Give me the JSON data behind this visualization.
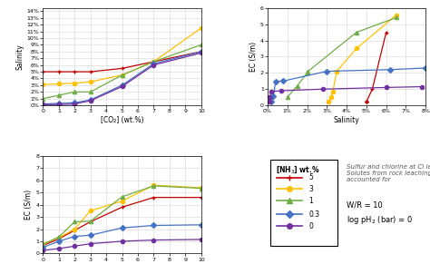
{
  "colors": {
    "red": "#c00000",
    "yellow": "#ffc000",
    "green": "#70ad47",
    "blue": "#4472c4",
    "purple": "#7030a0"
  },
  "markers": {
    "red": "+",
    "yellow": "o",
    "green": "^",
    "blue": "D",
    "purple": "o"
  },
  "nh3_labels": [
    "5",
    "3",
    "1",
    "0.3",
    "0"
  ],
  "color_order": [
    "red",
    "yellow",
    "green",
    "blue",
    "purple"
  ],
  "top_left": {
    "xlabel": "[CO₂] (wt.%)",
    "ylabel": "Salinity",
    "xlim": [
      0,
      10
    ],
    "ylim": [
      0,
      0.145
    ],
    "x": [
      0,
      1,
      2,
      3,
      5,
      7,
      10
    ],
    "series": {
      "red": [
        0.05,
        0.05,
        0.05,
        0.05,
        0.055,
        0.065,
        0.08
      ],
      "yellow": [
        0.031,
        0.032,
        0.033,
        0.035,
        0.045,
        0.065,
        0.115
      ],
      "green": [
        0.01,
        0.015,
        0.02,
        0.02,
        0.045,
        0.065,
        0.09
      ],
      "blue": [
        0.002,
        0.003,
        0.004,
        0.008,
        0.03,
        0.062,
        0.08
      ],
      "purple": [
        0.001,
        0.001,
        0.002,
        0.007,
        0.028,
        0.06,
        0.078
      ]
    }
  },
  "top_right": {
    "xlabel": "Salinity",
    "ylabel": "EC (S/m)",
    "xlim": [
      0,
      0.08
    ],
    "ylim": [
      0,
      6
    ],
    "series": {
      "red": {
        "x": [
          0.05,
          0.05,
          0.05,
          0.05,
          0.053,
          0.06
        ],
        "y": [
          0.22,
          0.22,
          0.22,
          0.22,
          1.0,
          4.5
        ]
      },
      "yellow": {
        "x": [
          0.031,
          0.032,
          0.033,
          0.035,
          0.045,
          0.065
        ],
        "y": [
          0.22,
          0.5,
          0.85,
          2.1,
          3.5,
          5.55
        ]
      },
      "green": {
        "x": [
          0.01,
          0.015,
          0.02,
          0.02,
          0.045,
          0.065
        ],
        "y": [
          0.5,
          1.2,
          2.0,
          2.05,
          4.5,
          5.4
        ]
      },
      "blue": {
        "x": [
          0.002,
          0.003,
          0.004,
          0.008,
          0.03,
          0.062,
          0.08
        ],
        "y": [
          0.22,
          0.55,
          1.48,
          1.5,
          2.1,
          2.2,
          2.3
        ]
      },
      "purple": {
        "x": [
          0.001,
          0.001,
          0.002,
          0.007,
          0.028,
          0.06,
          0.078
        ],
        "y": [
          0.22,
          0.5,
          0.85,
          0.9,
          1.0,
          1.1,
          1.15
        ]
      }
    }
  },
  "bottom_left": {
    "xlabel": "[CO₂] (wt.%)",
    "ylabel": "EC (S/m)",
    "xlim": [
      0,
      10
    ],
    "ylim": [
      0,
      8
    ],
    "x": [
      0,
      1,
      2,
      3,
      5,
      7,
      10
    ],
    "series": {
      "red": [
        0.65,
        1.2,
        1.9,
        2.6,
        3.8,
        4.6,
        4.6
      ],
      "yellow": [
        0.75,
        1.3,
        2.0,
        3.5,
        4.3,
        5.6,
        5.4
      ],
      "green": [
        0.75,
        1.35,
        2.6,
        2.65,
        4.65,
        5.55,
        5.35
      ],
      "blue": [
        0.5,
        1.0,
        1.4,
        1.5,
        2.1,
        2.3,
        2.35
      ],
      "purple": [
        0.25,
        0.4,
        0.6,
        0.8,
        1.0,
        1.1,
        1.15
      ]
    }
  }
}
